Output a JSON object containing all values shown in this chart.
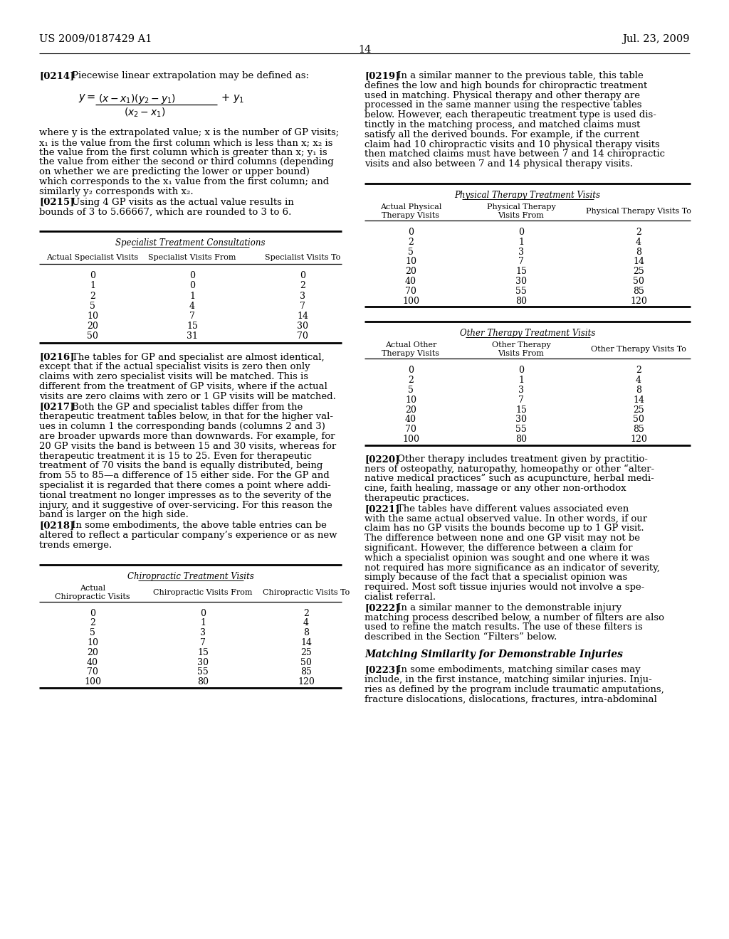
{
  "page_header_left": "US 2009/0187429 A1",
  "page_header_right": "Jul. 23, 2009",
  "page_number": "14",
  "bg_color": "#ffffff",
  "left_col": {
    "table1_title": "Specialist Treatment Consultations",
    "table1_headers": [
      "Actual Specialist Visits",
      "Specialist Visits From",
      "Specialist Visits To"
    ],
    "table1_data": [
      [
        "0",
        "0",
        "0"
      ],
      [
        "1",
        "0",
        "2"
      ],
      [
        "2",
        "1",
        "3"
      ],
      [
        "5",
        "4",
        "7"
      ],
      [
        "10",
        "7",
        "14"
      ],
      [
        "20",
        "15",
        "30"
      ],
      [
        "50",
        "31",
        "70"
      ]
    ],
    "table2_title": "Chiropractic Treatment Visits",
    "table2_data": [
      [
        "0",
        "0",
        "2"
      ],
      [
        "2",
        "1",
        "4"
      ],
      [
        "5",
        "3",
        "8"
      ],
      [
        "10",
        "7",
        "14"
      ],
      [
        "20",
        "15",
        "25"
      ],
      [
        "40",
        "30",
        "50"
      ],
      [
        "70",
        "55",
        "85"
      ],
      [
        "100",
        "80",
        "120"
      ]
    ]
  },
  "right_col": {
    "table3_title": "Physical Therapy Treatment Visits",
    "table3_data": [
      [
        "0",
        "0",
        "2"
      ],
      [
        "2",
        "1",
        "4"
      ],
      [
        "5",
        "3",
        "8"
      ],
      [
        "10",
        "7",
        "14"
      ],
      [
        "20",
        "15",
        "25"
      ],
      [
        "40",
        "30",
        "50"
      ],
      [
        "70",
        "55",
        "85"
      ],
      [
        "100",
        "80",
        "120"
      ]
    ],
    "table4_title": "Other Therapy Treatment Visits",
    "table4_data": [
      [
        "0",
        "0",
        "2"
      ],
      [
        "2",
        "1",
        "4"
      ],
      [
        "5",
        "3",
        "8"
      ],
      [
        "10",
        "7",
        "14"
      ],
      [
        "20",
        "15",
        "25"
      ],
      [
        "40",
        "30",
        "50"
      ],
      [
        "70",
        "55",
        "85"
      ],
      [
        "100",
        "80",
        "120"
      ]
    ]
  }
}
